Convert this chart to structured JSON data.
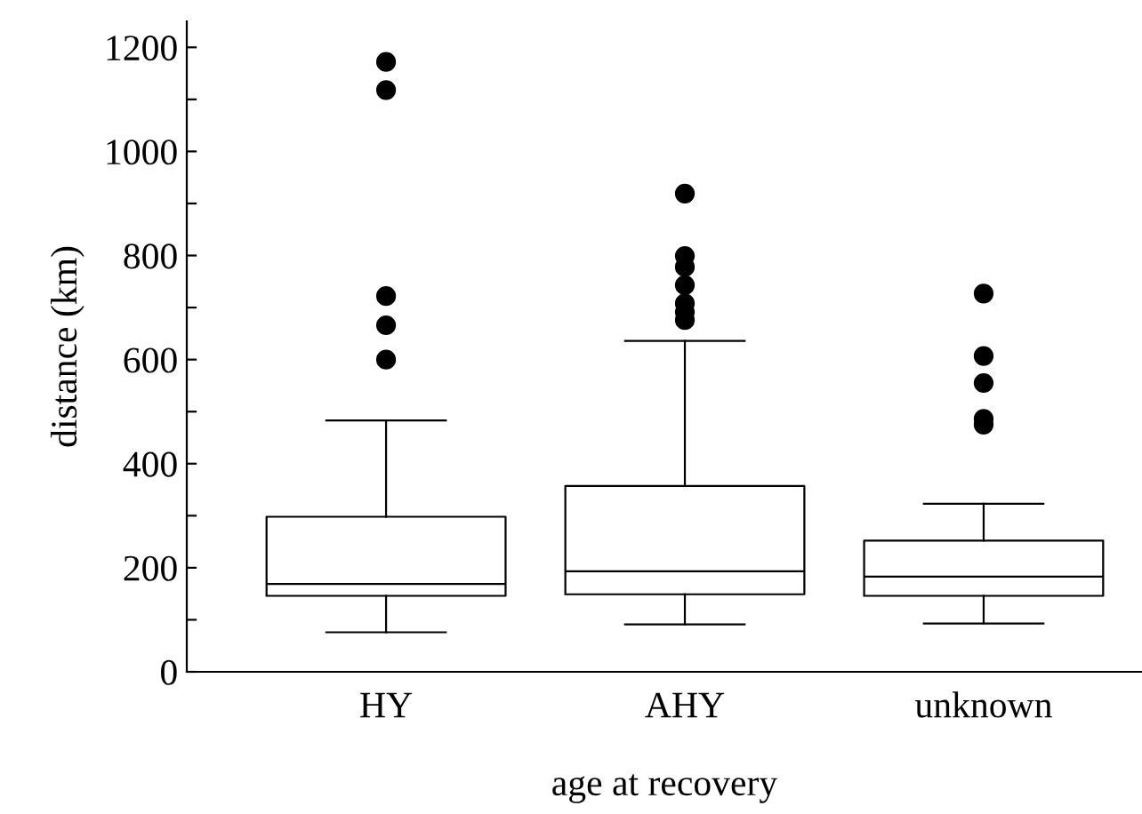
{
  "chart_data": {
    "type": "box",
    "xlabel": "age at recovery",
    "ylabel": "distance (km)",
    "categories": [
      "HY",
      "AHY",
      "unknown"
    ],
    "boxes": [
      {
        "low": 76,
        "q1": 146,
        "median": 169,
        "q3": 298,
        "high": 483,
        "outliers": [
          1172,
          1118,
          722,
          666,
          600
        ]
      },
      {
        "low": 91,
        "q1": 149,
        "median": 193,
        "q3": 357,
        "high": 636,
        "outliers": [
          919,
          799,
          778,
          743,
          708,
          691,
          676
        ]
      },
      {
        "low": 93,
        "q1": 146,
        "median": 183,
        "q3": 252,
        "high": 323,
        "outliers": [
          727,
          607,
          555,
          486,
          475
        ]
      }
    ],
    "ylim": [
      0,
      1250
    ],
    "yticks": [
      0,
      {
        "value": 100,
        "label": null
      },
      200,
      {
        "value": 300,
        "label": null
      },
      400,
      {
        "value": 500,
        "label": null
      },
      600,
      {
        "value": 700,
        "label": null
      },
      800,
      {
        "value": 900,
        "label": null
      },
      1000,
      {
        "value": 1100,
        "label": null
      },
      1200
    ],
    "grid": false,
    "legend": false
  }
}
